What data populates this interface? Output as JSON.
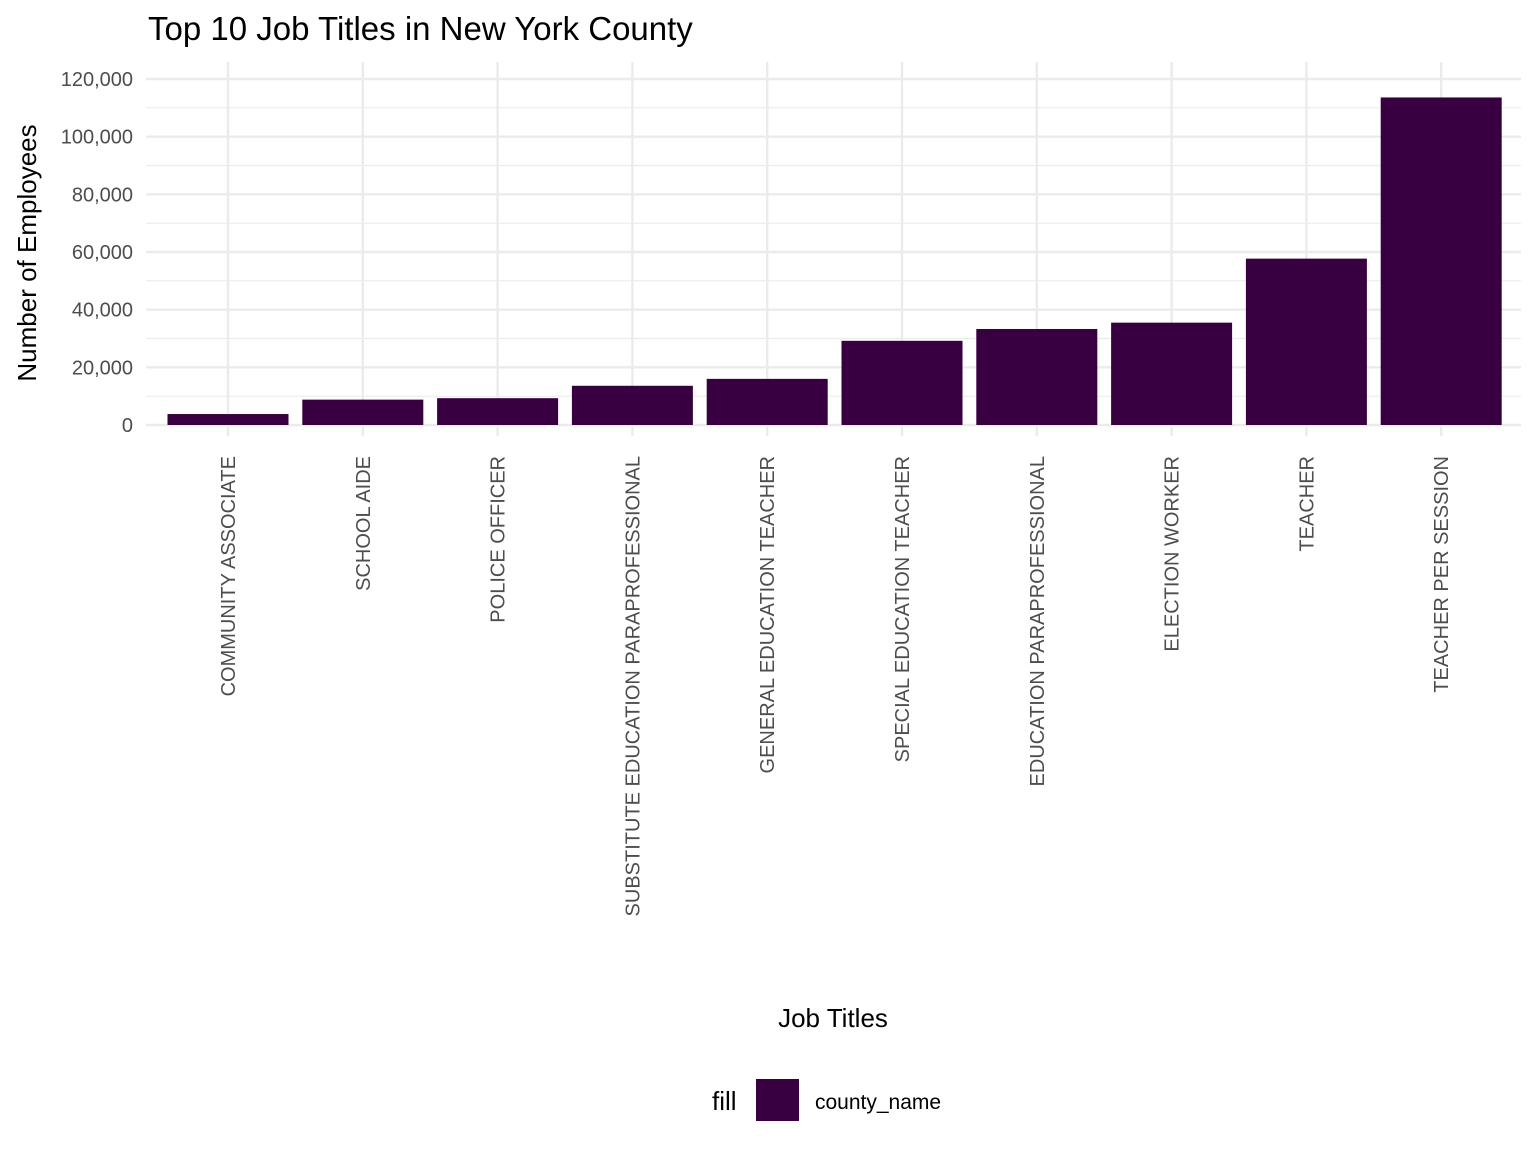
{
  "chart_data": {
    "type": "bar",
    "title": "Top 10 Job Titles in New York County",
    "xlabel": "Job Titles",
    "ylabel": "Number of Employees",
    "categories": [
      "COMMUNITY ASSOCIATE",
      "SCHOOL AIDE",
      "POLICE OFFICER",
      "SUBSTITUTE EDUCATION PARAPROFESSIONAL",
      "GENERAL EDUCATION TEACHER",
      "SPECIAL EDUCATION TEACHER",
      "EDUCATION PARAPROFESSIONAL",
      "ELECTION WORKER",
      "TEACHER",
      "TEACHER PER SESSION"
    ],
    "values": [
      3800,
      8800,
      9300,
      13600,
      16000,
      29200,
      33300,
      35500,
      57700,
      113600
    ],
    "ylim": [
      0,
      120000
    ],
    "yticks": [
      0,
      20000,
      40000,
      60000,
      80000,
      100000,
      120000
    ],
    "ytick_labels": [
      "0",
      "20,000",
      "40,000",
      "60,000",
      "80,000",
      "100,000",
      "120,000"
    ],
    "grid": true,
    "legend": {
      "position": "bottom",
      "title": "fill",
      "entries": [
        {
          "label": "county_name",
          "color": "#380040"
        }
      ]
    },
    "bar_color": "#380040",
    "grid_color": "#ebebeb"
  }
}
